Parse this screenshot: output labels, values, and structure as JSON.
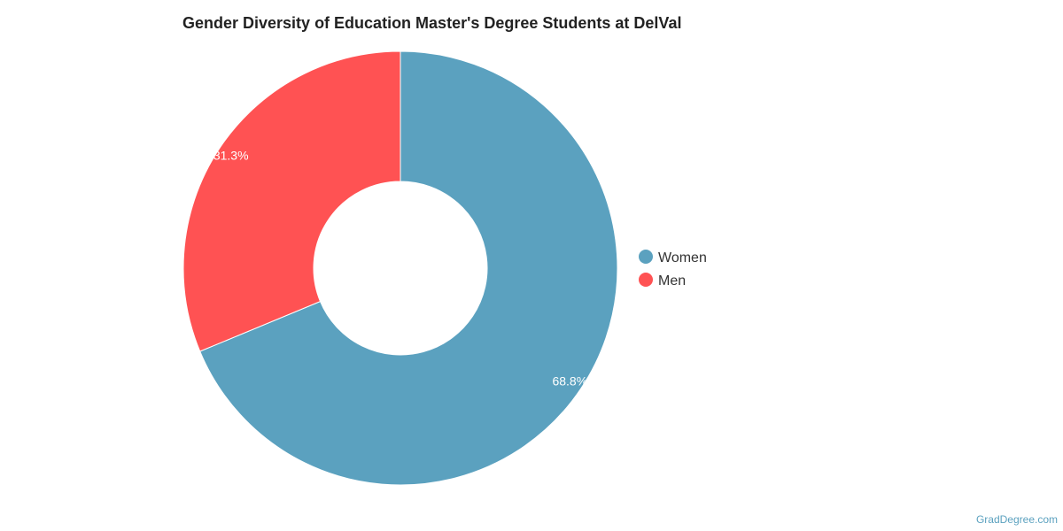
{
  "chart_data": {
    "type": "pie",
    "style": "donut",
    "title": "Gender Diversity of Education Master's Degree Students at DelVal",
    "categories": [
      "Women",
      "Men"
    ],
    "values": [
      68.8,
      31.3
    ],
    "labels": [
      "68.8%",
      "31.3%"
    ],
    "colors": [
      "#5ba1bf",
      "#ff5253"
    ],
    "legend_position": "right"
  },
  "credit": "GradDegree.com"
}
